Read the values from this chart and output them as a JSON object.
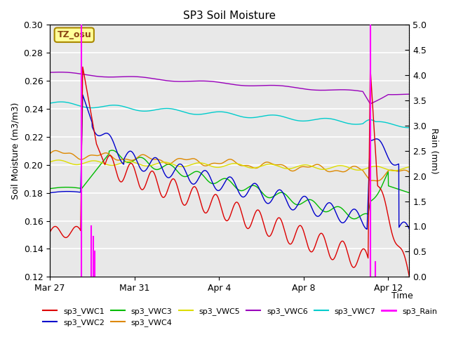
{
  "title": "SP3 Soil Moisture",
  "ylabel_left": "Soil Moisture (m3/m3)",
  "ylabel_right": "Rain (mm)",
  "xlabel": "Time",
  "xlim_days": [
    0,
    17
  ],
  "ylim_left": [
    0.12,
    0.3
  ],
  "ylim_right": [
    0.0,
    5.0
  ],
  "x_ticks_labels": [
    "Mar 27",
    "Mar 31",
    "Apr 4",
    "Apr 8",
    "Apr 12"
  ],
  "x_ticks_pos": [
    0,
    4,
    8,
    12,
    16
  ],
  "y_ticks_left": [
    0.12,
    0.14,
    0.16,
    0.18,
    0.2,
    0.22,
    0.24,
    0.26,
    0.28,
    0.3
  ],
  "y_ticks_right": [
    0.0,
    0.5,
    1.0,
    1.5,
    2.0,
    2.5,
    3.0,
    3.5,
    4.0,
    4.5,
    5.0
  ],
  "colors": {
    "VWC1": "#dd0000",
    "VWC2": "#0000cc",
    "VWC3": "#00bb00",
    "VWC4": "#dd8800",
    "VWC5": "#dddd00",
    "VWC6": "#9900bb",
    "VWC7": "#00cccc",
    "Rain": "#ff00ff"
  },
  "bg_color": "#e8e8e8",
  "fig_color": "#ffffff",
  "title_fontsize": 11,
  "label_fontsize": 9,
  "tick_fontsize": 9,
  "annotation_text": "TZ_osu"
}
